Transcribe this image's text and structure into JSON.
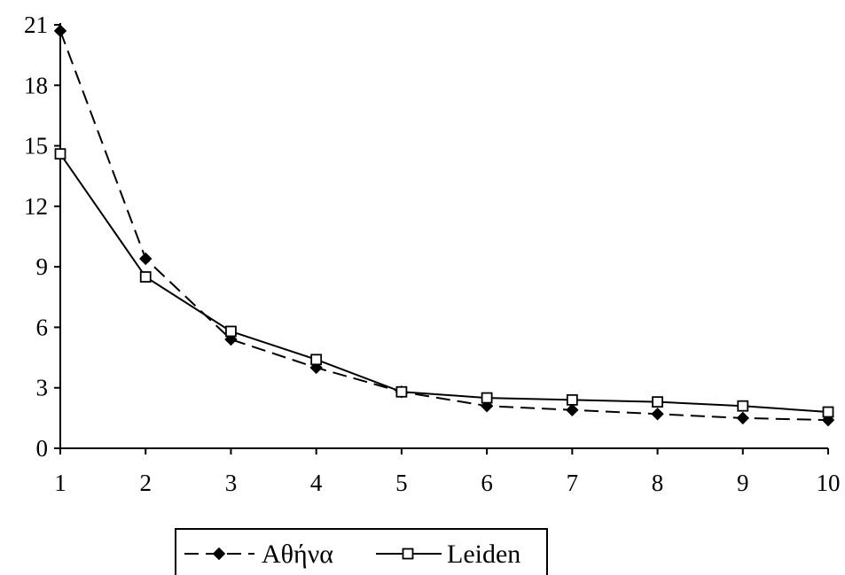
{
  "chart_data": {
    "type": "line",
    "title": "",
    "xlabel": "",
    "ylabel": "",
    "x": [
      1,
      2,
      3,
      4,
      5,
      6,
      7,
      8,
      9,
      10
    ],
    "xlim": [
      1,
      10
    ],
    "ylim": [
      0,
      21
    ],
    "xticks": [
      "1",
      "2",
      "3",
      "4",
      "5",
      "6",
      "7",
      "8",
      "9",
      "10"
    ],
    "yticks": [
      "0",
      "3",
      "6",
      "9",
      "12",
      "15",
      "18",
      "21"
    ],
    "grid": false,
    "legend_position": "bottom",
    "series": [
      {
        "name": "Αθήνα",
        "values": [
          20.7,
          9.4,
          5.4,
          4.0,
          2.8,
          2.1,
          1.9,
          1.7,
          1.5,
          1.4
        ],
        "line_style": "dashed",
        "marker": "filled-diamond",
        "color": "#000000"
      },
      {
        "name": "Leiden",
        "values": [
          14.6,
          8.5,
          5.8,
          4.4,
          2.8,
          2.5,
          2.4,
          2.3,
          2.1,
          1.8
        ],
        "line_style": "solid",
        "marker": "open-square",
        "color": "#000000"
      }
    ]
  }
}
